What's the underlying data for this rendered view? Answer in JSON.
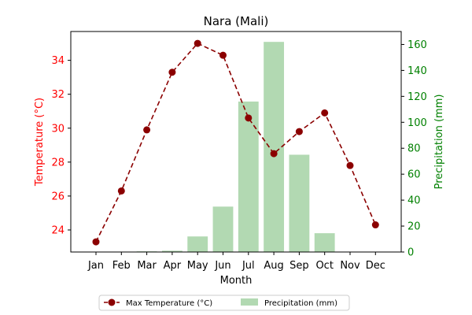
{
  "chart_data": {
    "type": "bar+line",
    "title": "Nara (Mali)",
    "xlabel": "Month",
    "categories": [
      "Jan",
      "Feb",
      "Mar",
      "Apr",
      "May",
      "Jun",
      "Jul",
      "Aug",
      "Sep",
      "Oct",
      "Nov",
      "Dec"
    ],
    "y_left": {
      "label": "Temperature (°C)",
      "lim": [
        22.7,
        35.7
      ],
      "ticks": [
        24,
        26,
        28,
        30,
        32,
        34
      ],
      "color": "#ff0000"
    },
    "y_right": {
      "label": "Precipitation (mm)",
      "lim": [
        0,
        170
      ],
      "ticks": [
        0,
        20,
        40,
        60,
        80,
        100,
        120,
        140,
        160
      ],
      "color": "#008000"
    },
    "series": [
      {
        "name": "Max Temperature (°C)",
        "kind": "line",
        "axis": "left",
        "color": "#8b0000",
        "linestyle": "dashed",
        "marker": "circle",
        "values": [
          23.3,
          26.3,
          29.9,
          33.3,
          35.0,
          34.3,
          30.6,
          28.5,
          29.8,
          30.9,
          27.8,
          24.3
        ]
      },
      {
        "name": "Precipitation (mm)",
        "kind": "bar",
        "axis": "right",
        "color": "#b2d9b2",
        "values": [
          0,
          0,
          0.5,
          1,
          12,
          35,
          116,
          162,
          75,
          14.5,
          0,
          0
        ]
      }
    ],
    "legend": {
      "placement": "bottom-center",
      "columns": 2
    }
  }
}
